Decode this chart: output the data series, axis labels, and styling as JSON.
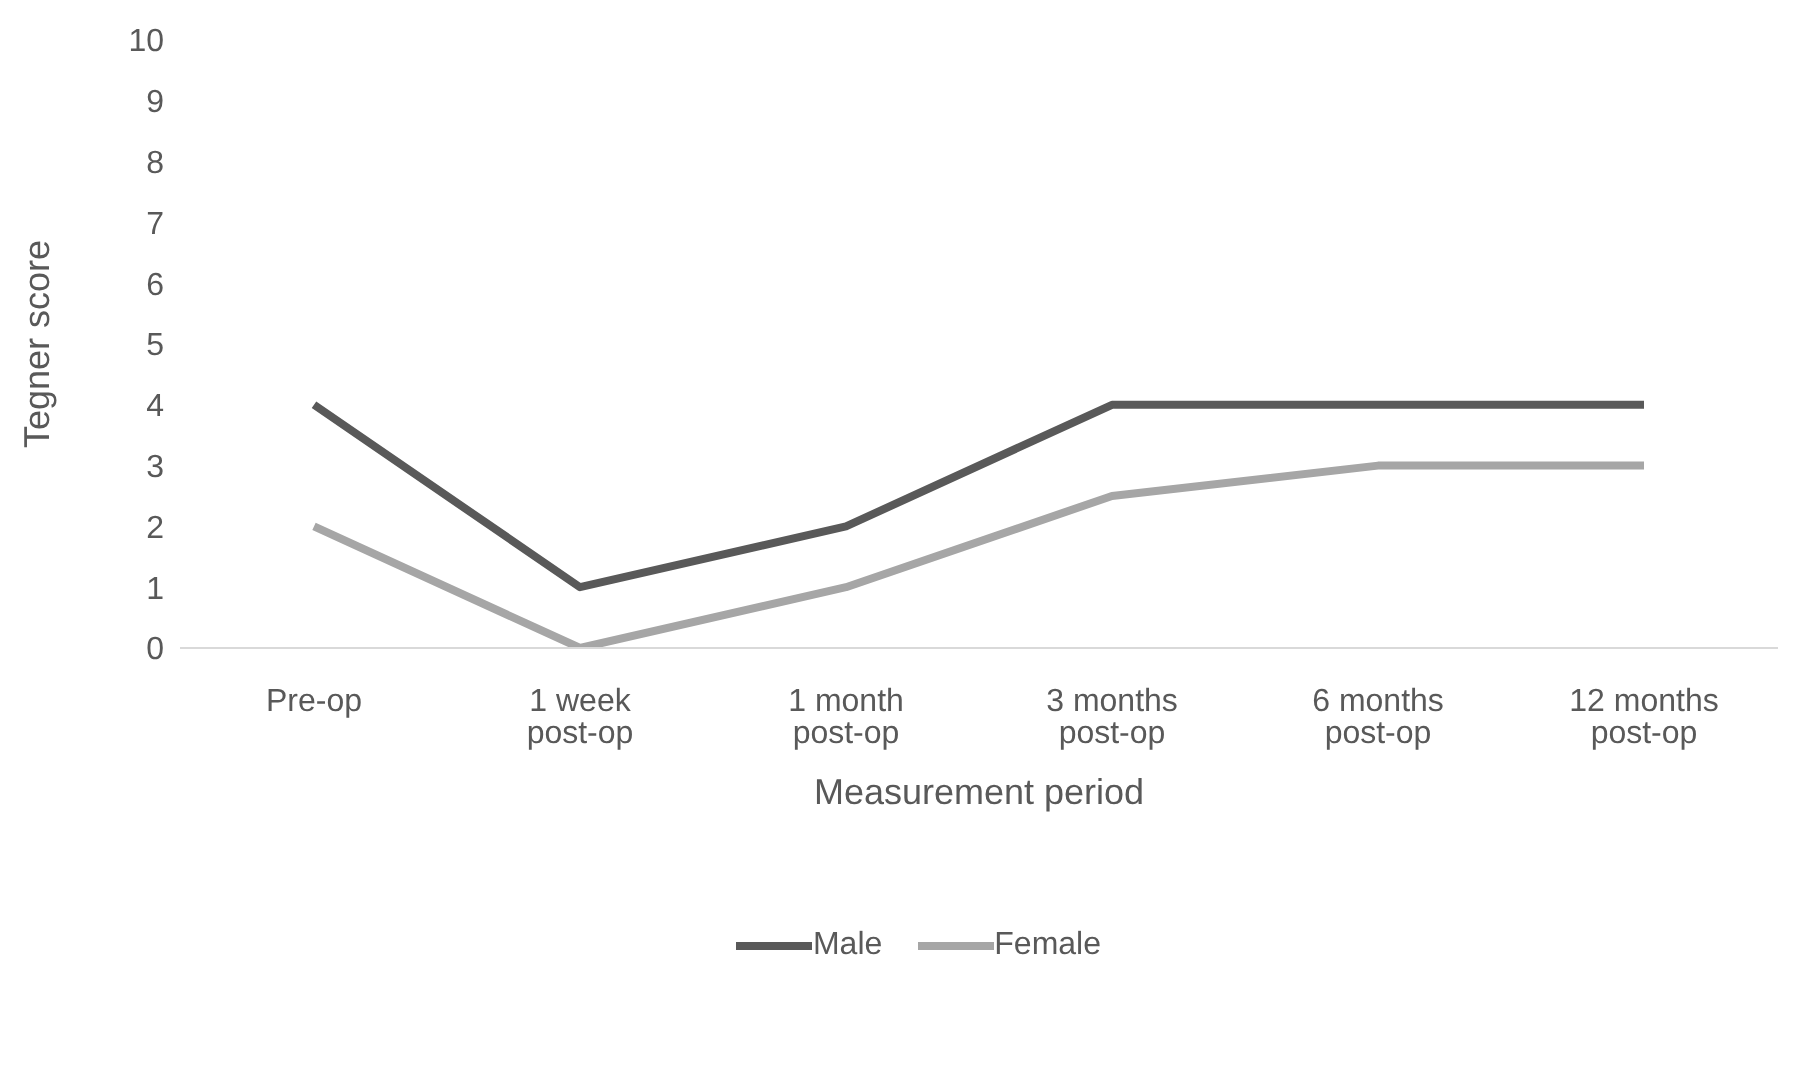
{
  "chart_data": {
    "type": "line",
    "xlabel": "Measurement period",
    "ylabel": "Tegner score",
    "categories": [
      "Pre-op",
      "1 week post-op",
      "1 month post-op",
      "3 months post-op",
      "6 months post-op",
      "12 months post-op"
    ],
    "series": [
      {
        "name": "Male",
        "color": "#595959",
        "values": [
          4,
          1,
          2,
          4,
          4,
          4
        ]
      },
      {
        "name": "Female",
        "color": "#a6a6a6",
        "values": [
          2,
          0,
          1,
          2.5,
          3,
          3
        ]
      }
    ],
    "ylim": [
      0,
      10
    ],
    "yticks": [
      0,
      1,
      2,
      3,
      4,
      5,
      6,
      7,
      8,
      9,
      10
    ],
    "grid": false,
    "legend": "bottom",
    "marker": "none",
    "line_style": "solid"
  }
}
